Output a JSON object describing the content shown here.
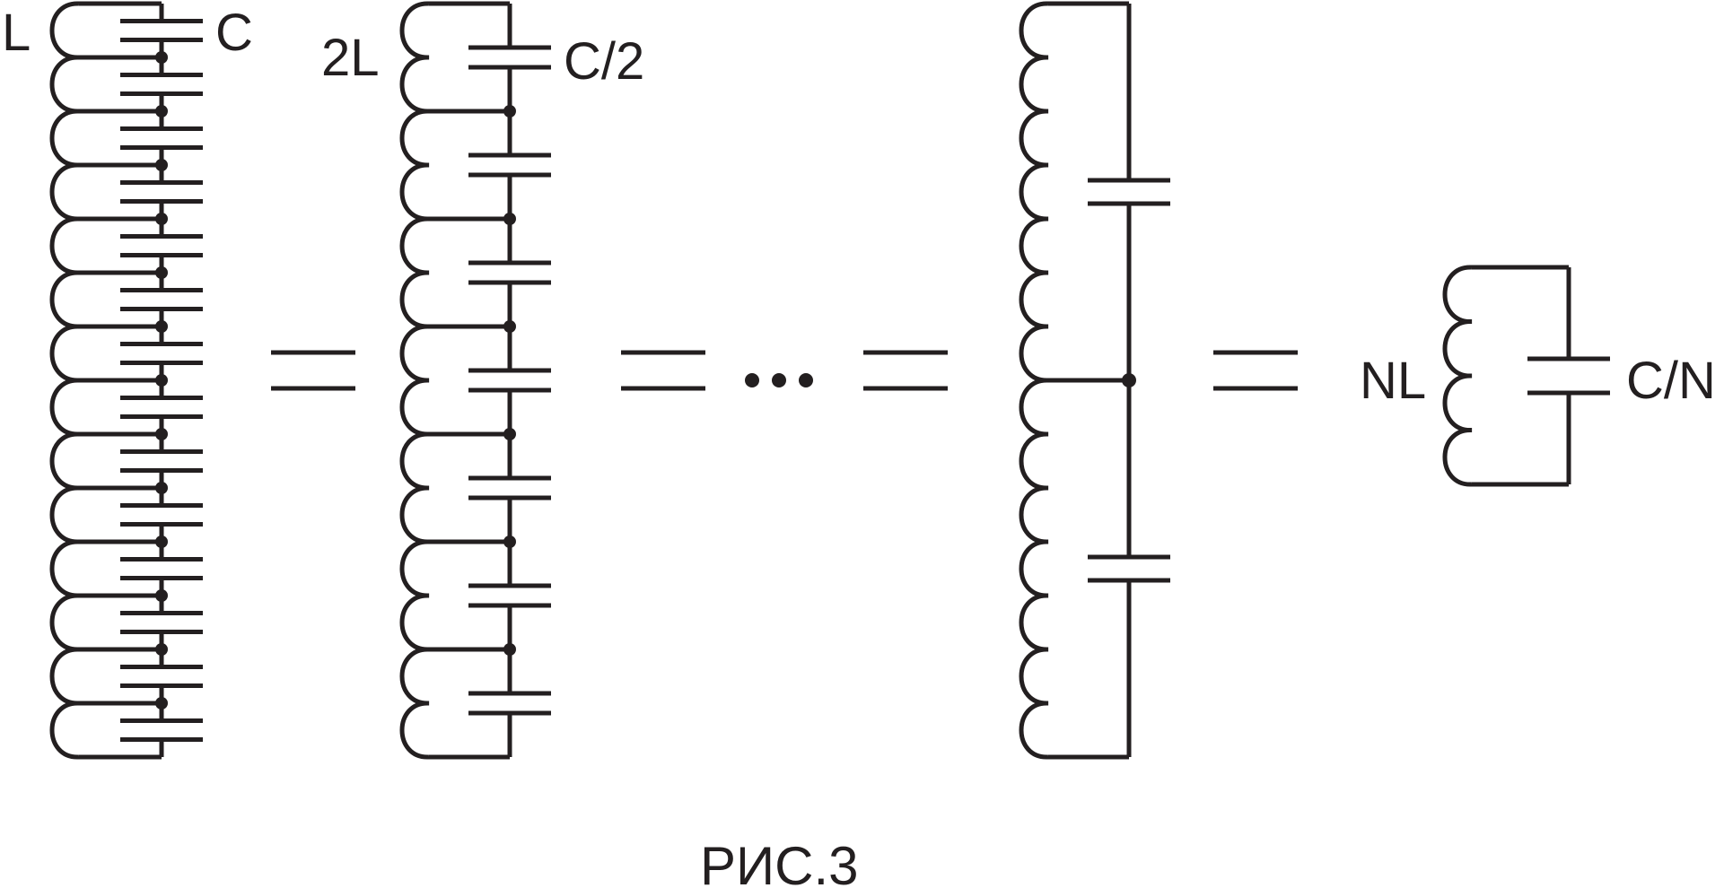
{
  "labels": {
    "c1_inductor": "L",
    "c1_capacitor": "C",
    "c2_inductor": "2L",
    "c2_capacitor": "C/2",
    "c4_inductor": "NL",
    "c4_capacitor": "C/N"
  },
  "caption": "РИС.3",
  "colors": {
    "ink": "#231f20",
    "background": "#ffffff"
  }
}
